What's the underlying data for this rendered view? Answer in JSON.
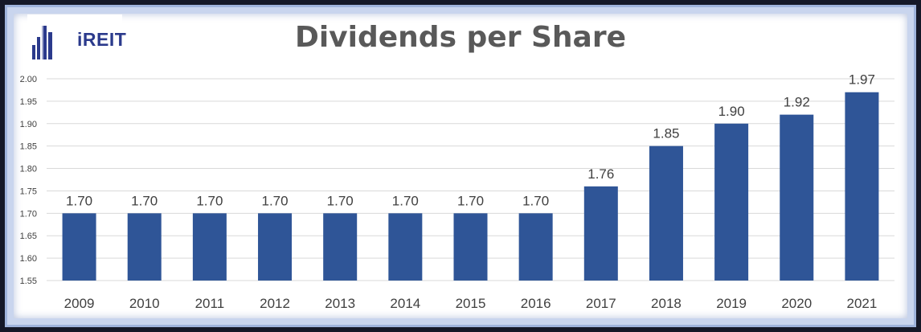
{
  "brand": {
    "logo_text": "iREIT",
    "accent": "#2b3a8c"
  },
  "chart_data": {
    "type": "bar",
    "title": "Dividends per Share",
    "xlabel": "",
    "ylabel": "",
    "categories": [
      "2009",
      "2010",
      "2011",
      "2012",
      "2013",
      "2014",
      "2015",
      "2016",
      "2017",
      "2018",
      "2019",
      "2020",
      "2021"
    ],
    "values": [
      1.7,
      1.7,
      1.7,
      1.7,
      1.7,
      1.7,
      1.7,
      1.7,
      1.76,
      1.85,
      1.9,
      1.92,
      1.97
    ],
    "data_labels": [
      "1.70",
      "1.70",
      "1.70",
      "1.70",
      "1.70",
      "1.70",
      "1.70",
      "1.70",
      "1.76",
      "1.85",
      "1.90",
      "1.92",
      "1.97"
    ],
    "y_ticks": [
      "1.55",
      "1.60",
      "1.65",
      "1.70",
      "1.75",
      "1.80",
      "1.85",
      "1.90",
      "1.95",
      "2.00"
    ],
    "ylim": [
      1.55,
      2.0
    ],
    "grid": true,
    "legend": "none",
    "bar_color": "#2f5597"
  }
}
